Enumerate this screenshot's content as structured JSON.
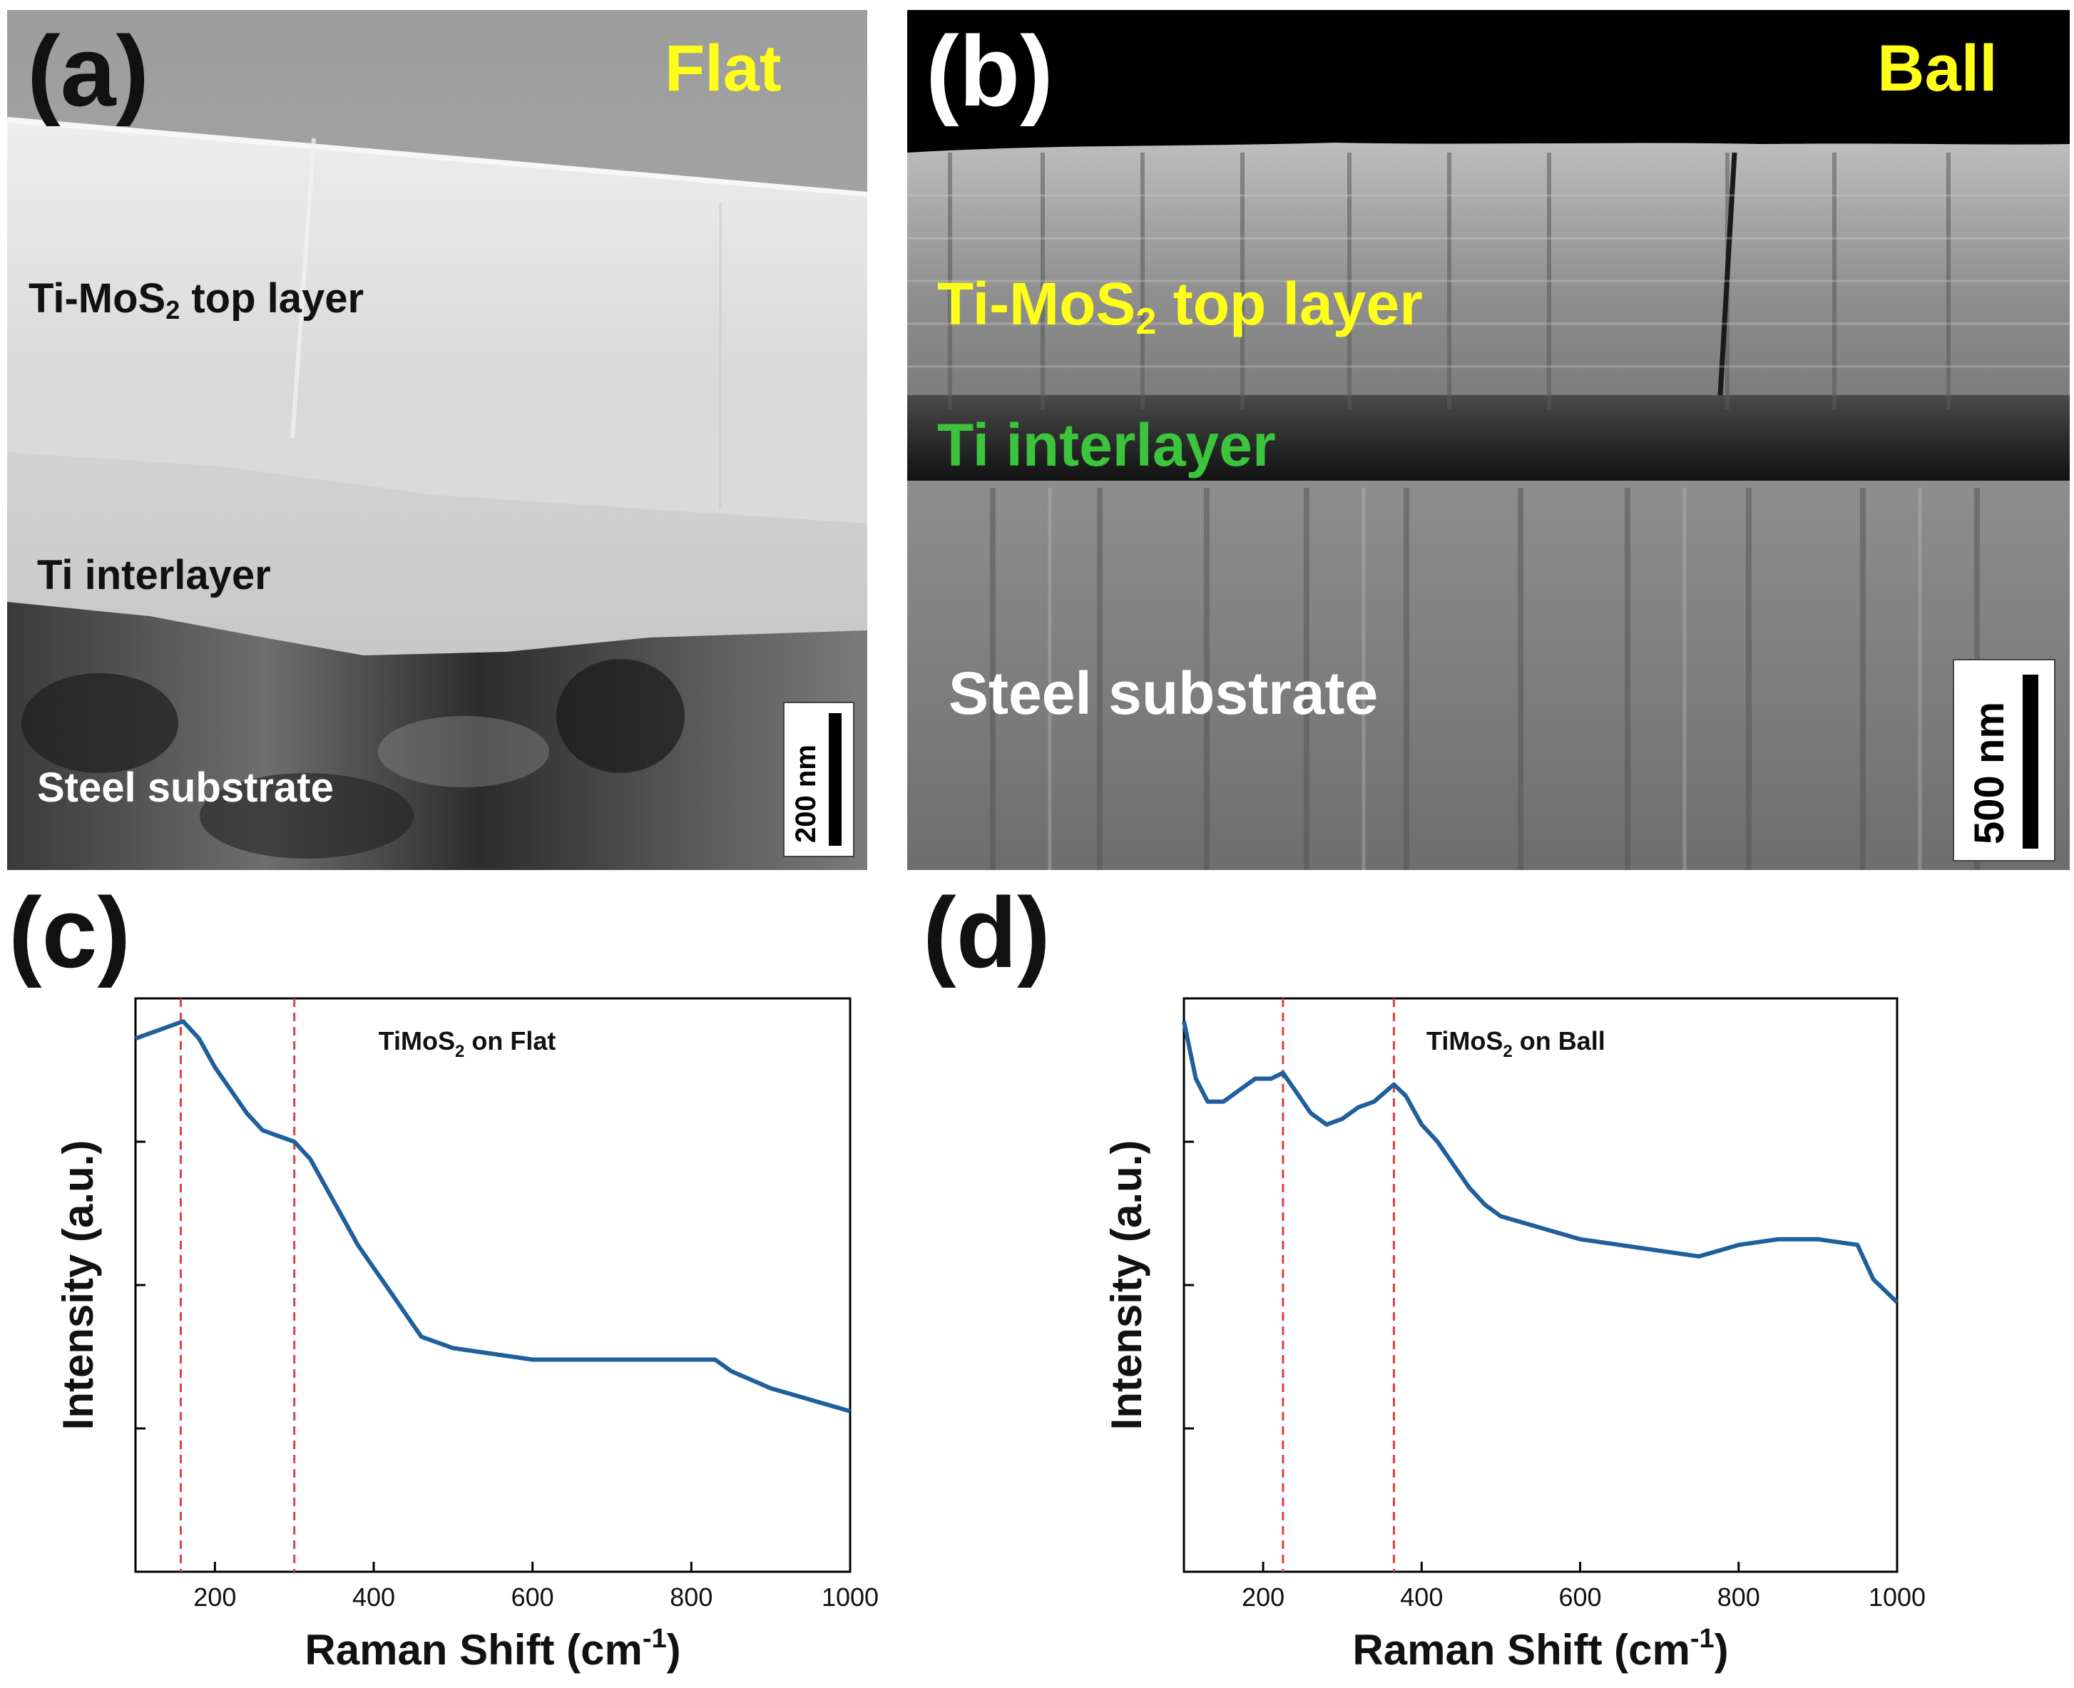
{
  "panels": {
    "a": {
      "letter": "(a)",
      "tag": "Flat",
      "layers": {
        "top": {
          "prefix": "Ti-MoS",
          "sub": "2",
          "suffix": " top layer"
        },
        "interlayer": "Ti interlayer",
        "substrate": "Steel substrate"
      },
      "scalebar": "200 nm"
    },
    "b": {
      "letter": "(b)",
      "tag": "Ball",
      "layers": {
        "top": {
          "prefix": "Ti-MoS",
          "sub": "2",
          "suffix": " top layer"
        },
        "interlayer": "Ti interlayer",
        "substrate": "Steel substrate"
      },
      "scalebar": "500 nm"
    },
    "c": {
      "letter": "(c)"
    },
    "d": {
      "letter": "(d)"
    }
  },
  "colors": {
    "yellow_label": "#ffff1a",
    "green_label": "#3cc43c",
    "white_label": "#ffffff",
    "dark_label": "#111111",
    "spectrum": "#1f5f9c",
    "guide": "#e04040"
  },
  "chart_data": [
    {
      "type": "line",
      "title": {
        "prefix": "TiMoS",
        "sub": "2",
        "suffix": " on Flat"
      },
      "xlabel": {
        "main": "Raman Shift (cm",
        "sup": "-1",
        "end": ")"
      },
      "ylabel": "Intensity (a.u.)",
      "xlim": [
        100,
        1000
      ],
      "ylim": [
        0,
        1
      ],
      "xticks": [
        200,
        400,
        600,
        800,
        1000
      ],
      "reference_lines": [
        157,
        300
      ],
      "series": [
        {
          "x": [
            100,
            120,
            140,
            160,
            180,
            200,
            220,
            240,
            260,
            280,
            300,
            320,
            340,
            360,
            380,
            400,
            420,
            440,
            460,
            480,
            500,
            550,
            600,
            650,
            700,
            750,
            800,
            830,
            850,
            900,
            950,
            1000
          ],
          "values": [
            0.93,
            0.94,
            0.95,
            0.96,
            0.93,
            0.88,
            0.84,
            0.8,
            0.77,
            0.76,
            0.75,
            0.72,
            0.67,
            0.62,
            0.57,
            0.53,
            0.49,
            0.45,
            0.41,
            0.4,
            0.39,
            0.38,
            0.37,
            0.37,
            0.37,
            0.37,
            0.37,
            0.37,
            0.35,
            0.32,
            0.3,
            0.28
          ]
        }
      ]
    },
    {
      "type": "line",
      "title": {
        "prefix": "TiMoS",
        "sub": "2",
        "suffix": " on Ball"
      },
      "xlabel": {
        "main": "Raman Shift (cm",
        "sup": "-1",
        "end": ")"
      },
      "ylabel": "Intensity (a.u.)",
      "xlim": [
        100,
        1000
      ],
      "ylim": [
        0,
        1
      ],
      "xticks": [
        200,
        400,
        600,
        800,
        1000
      ],
      "reference_lines": [
        225,
        365
      ],
      "series": [
        {
          "x": [
            100,
            115,
            130,
            150,
            170,
            190,
            210,
            225,
            240,
            260,
            280,
            300,
            320,
            340,
            365,
            380,
            400,
            420,
            440,
            460,
            480,
            500,
            550,
            600,
            650,
            700,
            750,
            800,
            850,
            900,
            950,
            970,
            1000
          ],
          "values": [
            0.96,
            0.86,
            0.82,
            0.82,
            0.84,
            0.86,
            0.86,
            0.87,
            0.84,
            0.8,
            0.78,
            0.79,
            0.81,
            0.82,
            0.85,
            0.83,
            0.78,
            0.75,
            0.71,
            0.67,
            0.64,
            0.62,
            0.6,
            0.58,
            0.57,
            0.56,
            0.55,
            0.57,
            0.58,
            0.58,
            0.57,
            0.51,
            0.47
          ]
        }
      ]
    }
  ]
}
